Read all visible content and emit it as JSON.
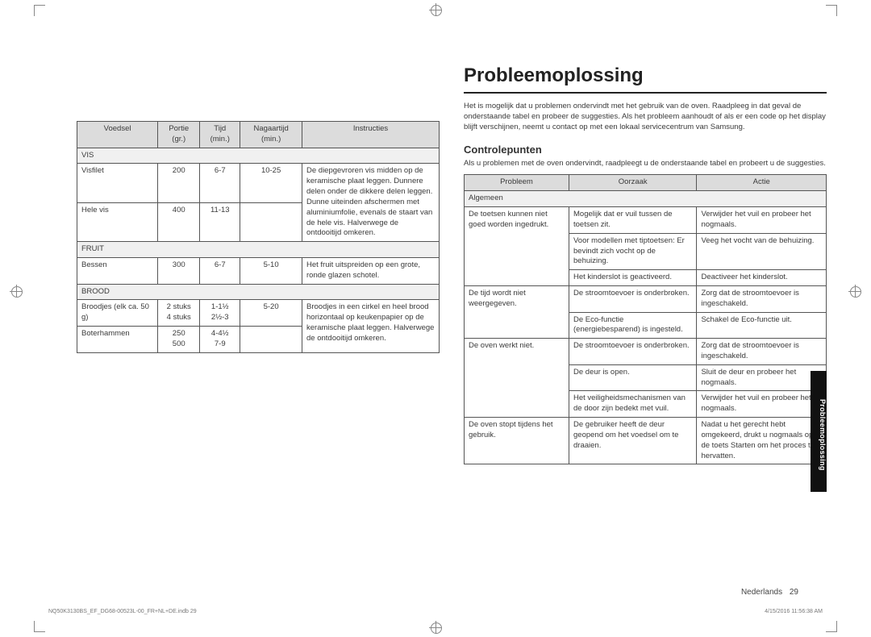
{
  "foodTable": {
    "headers": [
      "Voedsel",
      "Portie (gr.)",
      "Tijd (min.)",
      "Nagaartijd (min.)",
      "Instructies"
    ],
    "sections": [
      {
        "label": "VIS",
        "rows": [
          {
            "cells": [
              "Visfilet",
              "200",
              "6-7",
              "10-25",
              ""
            ],
            "instrRowspan": 2,
            "instr": "De diepgevroren vis midden op de keramische plaat leggen. Dunnere delen onder de dikkere delen leggen. Dunne uiteinden afschermen met aluminiumfolie, evenals de staart van de hele vis. Halverwege de ontdooitijd omkeren."
          },
          {
            "cells": [
              "Hele vis",
              "400",
              "11-13",
              "",
              ""
            ]
          }
        ]
      },
      {
        "label": "FRUIT",
        "rows": [
          {
            "cells": [
              "Bessen",
              "300",
              "6-7",
              "5-10",
              "Het fruit uitspreiden op een grote, ronde glazen schotel."
            ]
          }
        ]
      },
      {
        "label": "BROOD",
        "rows": [
          {
            "cells": [
              "Broodjes (elk ca. 50 g)",
              "2 stuks\n4 stuks",
              "1-1½\n2½-3",
              "5-20",
              "Broodjes in een cirkel en heel brood horizontaal op keukenpapier op de keramische plaat leggen. Halverwege de ontdooitijd omkeren."
            ],
            "instrRowspan": 2
          },
          {
            "cells": [
              "Boterhammen",
              "250\n500",
              "4-4½\n7-9",
              "",
              ""
            ]
          }
        ]
      }
    ]
  },
  "rightCol": {
    "title": "Probleemoplossing",
    "intro": "Het is mogelijk dat u problemen ondervindt met het gebruik van de oven. Raadpleeg in dat geval de onderstaande tabel en probeer de suggesties. Als het probleem aanhoudt of als er een code op het display blijft verschijnen, neemt u contact op met een lokaal servicecentrum van Samsung.",
    "subheading": "Controlepunten",
    "subintro": "Als u problemen met de oven ondervindt, raadpleegt u de onderstaande tabel en probeert u de suggesties.",
    "headers": [
      "Probleem",
      "Oorzaak",
      "Actie"
    ],
    "section": "Algemeen",
    "rows": [
      {
        "problem": "De toetsen kunnen niet goed worden ingedrukt.",
        "probRowspan": 3,
        "cause": "Mogelijk dat er vuil tussen de toetsen zit.",
        "action": "Verwijder het vuil en probeer het nogmaals."
      },
      {
        "cause": "Voor modellen met tiptoetsen: Er bevindt zich vocht op de behuizing.",
        "action": "Veeg het vocht van de behuizing."
      },
      {
        "cause": "Het kinderslot is geactiveerd.",
        "action": "Deactiveer het kinderslot."
      },
      {
        "problem": "De tijd wordt niet weergegeven.",
        "probRowspan": 2,
        "cause": "De stroomtoevoer is onderbroken.",
        "action": "Zorg dat de stroomtoevoer is ingeschakeld."
      },
      {
        "cause": "De Eco-functie (energiebesparend) is ingesteld.",
        "action": "Schakel de Eco-functie uit."
      },
      {
        "problem": "De oven werkt niet.",
        "probRowspan": 3,
        "cause": "De stroomtoevoer is onderbroken.",
        "action": "Zorg dat de stroomtoevoer is ingeschakeld."
      },
      {
        "cause": "De deur is open.",
        "action": "Sluit de deur en probeer het nogmaals."
      },
      {
        "cause": "Het veiligheidsmechanismen van de door zijn bedekt met vuil.",
        "action": "Verwijder het vuil en probeer het nogmaals."
      },
      {
        "problem": "De oven stopt tijdens het gebruik.",
        "probRowspan": 1,
        "cause": "De gebruiker heeft de deur geopend om het voedsel om te draaien.",
        "action": "Nadat u het gerecht hebt omgekeerd, drukt u nogmaals op de toets Starten om het proces te hervatten."
      }
    ]
  },
  "sideTab": "Probleemoplossing",
  "footer": {
    "lang": "Nederlands",
    "pageNum": "29",
    "leftMeta": "NQ50K3130BS_EF_DG68-00523L-00_FR+NL+DE.indb   29",
    "rightMeta": "4/15/2016   11:56:38 AM"
  },
  "colors": {
    "headerBg": "#dcdcdc",
    "sectionBg": "#f0f0f0",
    "border": "#555555",
    "tabBg": "#111111"
  }
}
